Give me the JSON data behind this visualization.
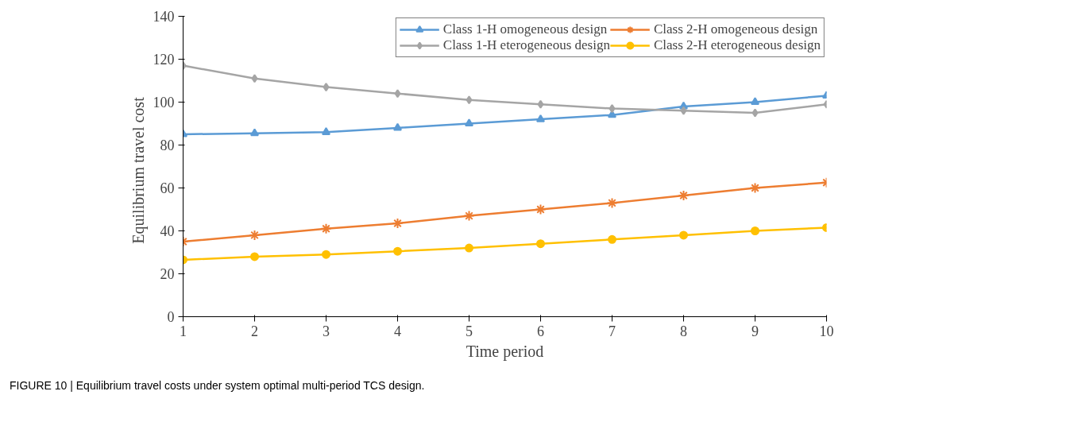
{
  "chart_data": {
    "type": "line",
    "xlabel": "Time period",
    "ylabel": "Equilibrium  travel  cost",
    "x": [
      1,
      2,
      3,
      4,
      5,
      6,
      7,
      8,
      9,
      10
    ],
    "xlim": [
      1,
      10
    ],
    "xticks": [
      1,
      2,
      3,
      4,
      5,
      6,
      7,
      8,
      9,
      10
    ],
    "ylim": [
      0,
      140
    ],
    "yticks": [
      0,
      20,
      40,
      60,
      80,
      100,
      120,
      140
    ],
    "series": [
      {
        "name": "Class 1-H omogeneous design",
        "color": "#5b9bd5",
        "marker": "triangle",
        "values": [
          85,
          85.5,
          86,
          88,
          90,
          92,
          94,
          98,
          100,
          103
        ]
      },
      {
        "name": "Class 2-H omogeneous design",
        "color": "#ed7d31",
        "marker": "cross",
        "values": [
          35,
          38,
          41,
          43.5,
          47,
          50,
          53,
          56.5,
          60,
          62.5
        ]
      },
      {
        "name": "Class 1-H eterogeneous design",
        "color": "#a5a5a5",
        "marker": "diamond",
        "values": [
          117,
          111,
          107,
          104,
          101,
          99,
          97,
          96,
          95,
          99
        ]
      },
      {
        "name": "Class 2-H eterogeneous design",
        "color": "#ffc000",
        "marker": "circle",
        "values": [
          26.5,
          28,
          29,
          30.5,
          32,
          34,
          36,
          38,
          40,
          41.5
        ]
      }
    ],
    "legend": "top right",
    "grid": false,
    "line_style": "solid",
    "annotations": [
      "FIGURE 10 | Equilibrium travel costs under system optimal multi-period TCS design."
    ]
  }
}
